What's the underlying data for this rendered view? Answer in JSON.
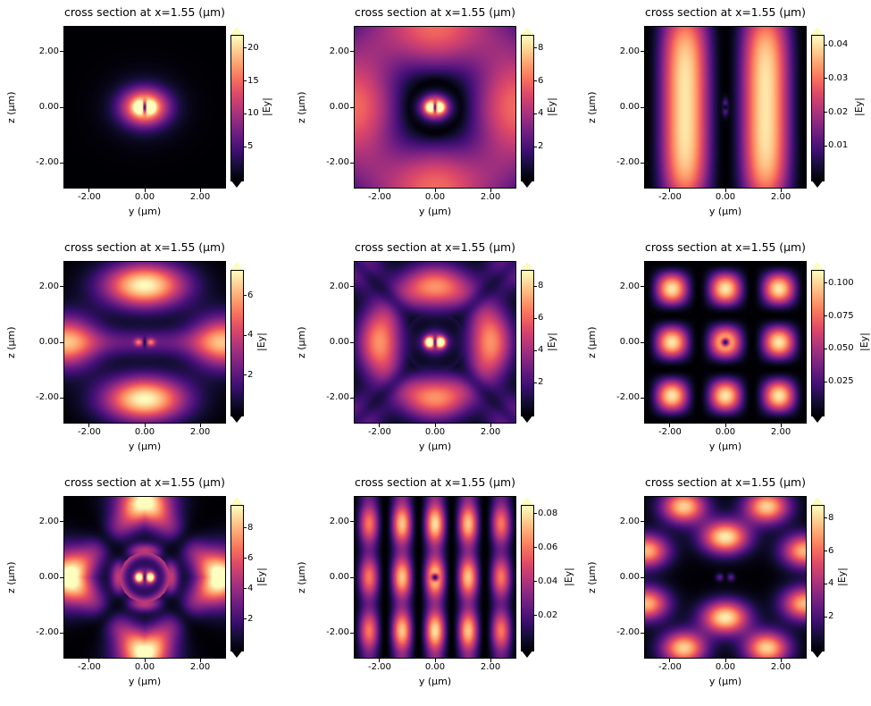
{
  "figure": {
    "background": "#ffffff",
    "colormap_name": "magma",
    "colormap_stops": [
      "#000004",
      "#140e36",
      "#3b0f70",
      "#641a80",
      "#8c2981",
      "#b73779",
      "#de4968",
      "#f7705c",
      "#fe9f6d",
      "#fece91",
      "#fcfdbf"
    ],
    "grid": {
      "rows": 3,
      "cols": 3
    }
  },
  "chart_data": [
    {
      "type": "heatmap",
      "title": "cross section at x=1.55 (µm)",
      "xlabel": "y (µm)",
      "ylabel": "z (µm)",
      "colorbar_label": "|Ey|",
      "extent": {
        "x": [
          -2.9,
          2.9
        ],
        "z": [
          -2.9,
          2.9
        ]
      },
      "xticks": {
        "values": [
          -2,
          0,
          2
        ],
        "labels": [
          "-2.00",
          "0.00",
          "2.00"
        ]
      },
      "yticks": {
        "values": [
          2,
          0,
          -2
        ],
        "labels": [
          "2.00",
          "0.00",
          "-2.00"
        ]
      },
      "vmin": 0,
      "vmax": 22,
      "colorbar_ticks": {
        "values": [
          5,
          10,
          15,
          20
        ],
        "labels": [
          "5",
          "10",
          "15",
          "20"
        ]
      },
      "colorbar_extend": "both",
      "field_model": {
        "components": [
          {
            "kind": "gauss",
            "amp": 20,
            "x": 0,
            "z": 0,
            "sx": 0.8,
            "sz": 0.62
          },
          {
            "kind": "gauss",
            "amp": 3,
            "x": 0,
            "z": 0,
            "sx": 1.35,
            "sz": 1.15
          },
          {
            "kind": "gauss",
            "amp": 10,
            "x": -0.22,
            "z": 0,
            "sx": 0.18,
            "sz": 0.2
          },
          {
            "kind": "gauss",
            "amp": 10,
            "x": 0.22,
            "z": 0,
            "sx": 0.18,
            "sz": 0.2
          }
        ],
        "masks": [
          {
            "kind": "slit",
            "depth": 0.85,
            "sx": 0.07,
            "sz": 0.22
          }
        ]
      }
    },
    {
      "type": "heatmap",
      "title": "cross section at x=1.55 (µm)",
      "xlabel": "y (µm)",
      "ylabel": "z (µm)",
      "colorbar_label": "|Ey|",
      "extent": {
        "x": [
          -2.9,
          2.9
        ],
        "z": [
          -2.9,
          2.9
        ]
      },
      "xticks": {
        "values": [
          -2,
          0,
          2
        ],
        "labels": [
          "-2.00",
          "0.00",
          "2.00"
        ]
      },
      "yticks": {
        "values": [
          2,
          0,
          -2
        ],
        "labels": [
          "2.00",
          "0.00",
          "-2.00"
        ]
      },
      "vmin": 0,
      "vmax": 8.8,
      "colorbar_ticks": {
        "values": [
          2,
          4,
          6,
          8
        ],
        "labels": [
          "2",
          "4",
          "6",
          "8"
        ]
      },
      "colorbar_extend": "both",
      "field_model": {
        "components": [
          {
            "kind": "gauss",
            "amp": 8.8,
            "x": 0,
            "z": 0,
            "sx": 0.5,
            "sz": 0.42
          },
          {
            "kind": "gauss",
            "amp": 4,
            "x": -0.2,
            "z": 0,
            "sx": 0.15,
            "sz": 0.17
          },
          {
            "kind": "gauss",
            "amp": 4,
            "x": 0.2,
            "z": 0,
            "sx": 0.15,
            "sz": 0.17
          },
          {
            "kind": "radialsin",
            "amp": 6,
            "r0": 0.95,
            "k": 0.8,
            "ang": 0.35
          }
        ],
        "masks": [
          {
            "kind": "slit",
            "depth": 0.8,
            "sx": 0.06,
            "sz": 0.2
          }
        ]
      }
    },
    {
      "type": "heatmap",
      "title": "cross section at x=1.55 (µm)",
      "xlabel": "y (µm)",
      "ylabel": "z (µm)",
      "colorbar_label": "|Ey|",
      "extent": {
        "x": [
          -2.9,
          2.9
        ],
        "z": [
          -2.9,
          2.9
        ]
      },
      "xticks": {
        "values": [
          -2,
          0,
          2
        ],
        "labels": [
          "-2.00",
          "0.00",
          "2.00"
        ]
      },
      "yticks": {
        "values": [
          2,
          0,
          -2
        ],
        "labels": [
          "2.00",
          "0.00",
          "-2.00"
        ]
      },
      "vmin": 0,
      "vmax": 0.043,
      "colorbar_ticks": {
        "values": [
          0.01,
          0.02,
          0.03,
          0.04
        ],
        "labels": [
          "0.01",
          "0.02",
          "0.03",
          "0.04"
        ]
      },
      "colorbar_extend": "both",
      "field_model": {
        "components": [
          {
            "kind": "vbands",
            "amp": 0.041,
            "k": 1.0833,
            "L": 2.9,
            "env": 0.3
          },
          {
            "kind": "gauss",
            "amp": 0.02,
            "x": 0,
            "z": 0,
            "sx": 0.1,
            "sz": 0.28
          }
        ],
        "masks": [
          {
            "kind": "darkdot",
            "depth": 0.9,
            "r": 0.13
          }
        ]
      }
    },
    {
      "type": "heatmap",
      "title": "cross section at x=1.55 (µm)",
      "xlabel": "y (µm)",
      "ylabel": "z (µm)",
      "colorbar_label": "|Ey|",
      "extent": {
        "x": [
          -2.9,
          2.9
        ],
        "z": [
          -2.9,
          2.9
        ]
      },
      "xticks": {
        "values": [
          -2,
          0,
          2
        ],
        "labels": [
          "-2.00",
          "0.00",
          "2.00"
        ]
      },
      "yticks": {
        "values": [
          2,
          0,
          -2
        ],
        "labels": [
          "2.00",
          "0.00",
          "-2.00"
        ]
      },
      "vmin": 0,
      "vmax": 7.3,
      "colorbar_ticks": {
        "values": [
          2,
          4,
          6
        ],
        "labels": [
          "2",
          "4",
          "6"
        ]
      },
      "colorbar_extend": "both",
      "field_model": {
        "components": [
          {
            "kind": "gauss",
            "amp": 7.3,
            "x": 0,
            "z": 2.05,
            "sx": 1.5,
            "sz": 0.8
          },
          {
            "kind": "gauss",
            "amp": 7.3,
            "x": 0,
            "z": -2.05,
            "sx": 1.5,
            "sz": 0.8
          },
          {
            "kind": "gauss",
            "amp": 5.8,
            "x": -2.85,
            "z": 0,
            "sx": 1.15,
            "sz": 0.95
          },
          {
            "kind": "gauss",
            "amp": 5.8,
            "x": 2.85,
            "z": 0,
            "sx": 1.15,
            "sz": 0.95
          },
          {
            "kind": "gauss",
            "amp": 2.2,
            "x": 0,
            "z": 0,
            "sx": 2.6,
            "sz": 0.5
          },
          {
            "kind": "gauss",
            "amp": 3.2,
            "x": -0.22,
            "z": 0,
            "sx": 0.15,
            "sz": 0.13
          },
          {
            "kind": "gauss",
            "amp": 3.2,
            "x": 0.22,
            "z": 0,
            "sx": 0.15,
            "sz": 0.13
          }
        ],
        "masks": [
          {
            "kind": "slit",
            "depth": 0.75,
            "sx": 0.06,
            "sz": 0.18
          }
        ]
      }
    },
    {
      "type": "heatmap",
      "title": "cross section at x=1.55 (µm)",
      "xlabel": "y (µm)",
      "ylabel": "z (µm)",
      "colorbar_label": "|Ey|",
      "extent": {
        "x": [
          -2.9,
          2.9
        ],
        "z": [
          -2.9,
          2.9
        ]
      },
      "xticks": {
        "values": [
          -2,
          0,
          2
        ],
        "labels": [
          "-2.00",
          "0.00",
          "2.00"
        ]
      },
      "yticks": {
        "values": [
          2,
          0,
          -2
        ],
        "labels": [
          "2.00",
          "0.00",
          "-2.00"
        ]
      },
      "vmin": 0,
      "vmax": 9,
      "colorbar_ticks": {
        "values": [
          2,
          4,
          6,
          8
        ],
        "labels": [
          "2",
          "4",
          "6",
          "8"
        ]
      },
      "colorbar_extend": "both",
      "field_model": {
        "components": [
          {
            "kind": "gauss",
            "amp": 9,
            "x": -0.21,
            "z": 0,
            "sx": 0.16,
            "sz": 0.18
          },
          {
            "kind": "gauss",
            "amp": 9,
            "x": 0.21,
            "z": 0,
            "sx": 0.16,
            "sz": 0.18
          },
          {
            "kind": "gauss",
            "amp": 5,
            "x": 0,
            "z": 0,
            "sx": 0.5,
            "sz": 0.42
          },
          {
            "kind": "ringang",
            "amp": 7,
            "r0": 2.0,
            "w": 0.8,
            "ang": 0.45
          },
          {
            "kind": "gauss",
            "amp": 3.5,
            "x": -2.7,
            "z": 2.7,
            "sx": 0.8,
            "sz": 0.8
          },
          {
            "kind": "gauss",
            "amp": 3.5,
            "x": 2.7,
            "z": 2.7,
            "sx": 0.8,
            "sz": 0.8
          },
          {
            "kind": "gauss",
            "amp": 3.5,
            "x": -2.7,
            "z": -2.7,
            "sx": 0.8,
            "sz": 0.8
          },
          {
            "kind": "gauss",
            "amp": 3.5,
            "x": 2.7,
            "z": -2.7,
            "sx": 0.8,
            "sz": 0.8
          }
        ],
        "masks": [
          {
            "kind": "slit",
            "depth": 0.75,
            "sx": 0.06,
            "sz": 0.2
          },
          {
            "kind": "darkdiag",
            "depth": 0.5,
            "w": 0.32,
            "rmin": 1.1
          }
        ]
      }
    },
    {
      "type": "heatmap",
      "title": "cross section at x=1.55 (µm)",
      "xlabel": "y (µm)",
      "ylabel": "z (µm)",
      "colorbar_label": "|Ey|",
      "extent": {
        "x": [
          -2.9,
          2.9
        ],
        "z": [
          -2.9,
          2.9
        ]
      },
      "xticks": {
        "values": [
          -2,
          0,
          2
        ],
        "labels": [
          "-2.00",
          "0.00",
          "2.00"
        ]
      },
      "yticks": {
        "values": [
          2,
          0,
          -2
        ],
        "labels": [
          "2.00",
          "0.00",
          "-2.00"
        ]
      },
      "vmin": 0,
      "vmax": 0.11,
      "colorbar_ticks": {
        "values": [
          0.025,
          0.05,
          0.075,
          0.1
        ],
        "labels": [
          "0.025",
          "0.050",
          "0.075",
          "0.100"
        ]
      },
      "colorbar_extend": "both",
      "field_model": {
        "components": [
          {
            "kind": "grid",
            "amp": 0.105,
            "kx": 1.628,
            "kz": 1.628
          }
        ],
        "masks": [
          {
            "kind": "darkdot",
            "depth": 0.85,
            "r": 0.14
          }
        ]
      }
    },
    {
      "type": "heatmap",
      "title": "cross section at x=1.55 (µm)",
      "xlabel": "y (µm)",
      "ylabel": "z (µm)",
      "colorbar_label": "|Ey|",
      "extent": {
        "x": [
          -2.9,
          2.9
        ],
        "z": [
          -2.9,
          2.9
        ]
      },
      "xticks": {
        "values": [
          -2,
          0,
          2
        ],
        "labels": [
          "-2.00",
          "0.00",
          "2.00"
        ]
      },
      "yticks": {
        "values": [
          2,
          0,
          -2
        ],
        "labels": [
          "2.00",
          "0.00",
          "-2.00"
        ]
      },
      "vmin": 0,
      "vmax": 9.5,
      "colorbar_ticks": {
        "values": [
          2,
          4,
          6,
          8
        ],
        "labels": [
          "2",
          "4",
          "6",
          "8"
        ]
      },
      "colorbar_extend": "both",
      "field_model": {
        "components": [
          {
            "kind": "gauss",
            "amp": 9.5,
            "x": -0.21,
            "z": 0,
            "sx": 0.15,
            "sz": 0.17
          },
          {
            "kind": "gauss",
            "amp": 9.5,
            "x": 0.21,
            "z": 0,
            "sx": 0.15,
            "sz": 0.17
          },
          {
            "kind": "gauss",
            "amp": 4,
            "x": 0,
            "z": 0,
            "sx": 0.5,
            "sz": 0.45
          },
          {
            "kind": "ringang",
            "amp": 5,
            "r0": 0.95,
            "w": 0.28,
            "ang": 0
          },
          {
            "kind": "gauss",
            "amp": 7.8,
            "x": -2.8,
            "z": 0,
            "sx": 0.85,
            "sz": 1.05
          },
          {
            "kind": "gauss",
            "amp": 7.8,
            "x": 2.8,
            "z": 0,
            "sx": 0.85,
            "sz": 1.05
          },
          {
            "kind": "gauss",
            "amp": 7.2,
            "x": 0,
            "z": 2.8,
            "sx": 1.05,
            "sz": 0.85
          },
          {
            "kind": "gauss",
            "amp": 7.2,
            "x": 0,
            "z": -2.8,
            "sx": 1.05,
            "sz": 0.85
          },
          {
            "kind": "diamond",
            "amp": 3.2,
            "d0": 2.7,
            "w": 0.75
          }
        ],
        "masks": [
          {
            "kind": "darkdiag",
            "depth": 0.75,
            "w": 0.38,
            "rmin": 0.9
          },
          {
            "kind": "slit",
            "depth": 0.7,
            "sx": 0.06,
            "sz": 0.2
          }
        ]
      }
    },
    {
      "type": "heatmap",
      "title": "cross section at x=1.55 (µm)",
      "xlabel": "y (µm)",
      "ylabel": "z (µm)",
      "colorbar_label": "|Ey|",
      "extent": {
        "x": [
          -2.9,
          2.9
        ],
        "z": [
          -2.9,
          2.9
        ]
      },
      "xticks": {
        "values": [
          -2,
          0,
          2
        ],
        "labels": [
          "-2.00",
          "0.00",
          "2.00"
        ]
      },
      "yticks": {
        "values": [
          2,
          0,
          -2
        ],
        "labels": [
          "2.00",
          "0.00",
          "-2.00"
        ]
      },
      "vmin": 0,
      "vmax": 0.085,
      "colorbar_ticks": {
        "values": [
          0.02,
          0.04,
          0.06,
          0.08
        ],
        "labels": [
          "0.02",
          "0.04",
          "0.06",
          "0.08"
        ]
      },
      "colorbar_extend": "both",
      "field_model": {
        "components": [
          {
            "kind": "vbeads",
            "amp": 0.08,
            "kx": 2.618,
            "kz": 1.628,
            "mix": 0.45,
            "edge": 0.35,
            "L": 2.9
          }
        ],
        "masks": [
          {
            "kind": "darkdot",
            "depth": 0.85,
            "r": 0.13
          }
        ]
      }
    },
    {
      "type": "heatmap",
      "title": "cross section at x=1.55 (µm)",
      "xlabel": "y (µm)",
      "ylabel": "z (µm)",
      "colorbar_label": "|Ey|",
      "extent": {
        "x": [
          -2.9,
          2.9
        ],
        "z": [
          -2.9,
          2.9
        ]
      },
      "xticks": {
        "values": [
          -2,
          0,
          2
        ],
        "labels": [
          "-2.00",
          "0.00",
          "2.00"
        ]
      },
      "yticks": {
        "values": [
          2,
          0,
          -2
        ],
        "labels": [
          "2.00",
          "0.00",
          "-2.00"
        ]
      },
      "vmin": 0,
      "vmax": 8.8,
      "colorbar_ticks": {
        "values": [
          2,
          4,
          6,
          8
        ],
        "labels": [
          "2",
          "4",
          "6",
          "8"
        ]
      },
      "colorbar_extend": "both",
      "field_model": {
        "components": [
          {
            "kind": "gauss",
            "amp": 8.5,
            "x": 0,
            "z": 1.45,
            "sx": 0.85,
            "sz": 0.6
          },
          {
            "kind": "gauss",
            "amp": 8.5,
            "x": 0,
            "z": -1.45,
            "sx": 0.85,
            "sz": 0.6
          },
          {
            "kind": "gauss",
            "amp": 8,
            "x": -1.5,
            "z": 2.55,
            "sx": 0.8,
            "sz": 0.6
          },
          {
            "kind": "gauss",
            "amp": 8,
            "x": 1.5,
            "z": 2.55,
            "sx": 0.8,
            "sz": 0.6
          },
          {
            "kind": "gauss",
            "amp": 8,
            "x": -1.5,
            "z": -2.55,
            "sx": 0.8,
            "sz": 0.6
          },
          {
            "kind": "gauss",
            "amp": 8,
            "x": 1.5,
            "z": -2.55,
            "sx": 0.8,
            "sz": 0.6
          },
          {
            "kind": "gauss",
            "amp": 7.5,
            "x": -2.85,
            "z": 0.95,
            "sx": 0.8,
            "sz": 0.6
          },
          {
            "kind": "gauss",
            "amp": 7.5,
            "x": 2.85,
            "z": 0.95,
            "sx": 0.8,
            "sz": 0.6
          },
          {
            "kind": "gauss",
            "amp": 7.5,
            "x": -2.85,
            "z": -0.95,
            "sx": 0.8,
            "sz": 0.6
          },
          {
            "kind": "gauss",
            "amp": 7.5,
            "x": 2.85,
            "z": -0.95,
            "sx": 0.8,
            "sz": 0.6
          },
          {
            "kind": "gauss",
            "amp": 2.5,
            "x": -0.2,
            "z": 0,
            "sx": 0.14,
            "sz": 0.14
          },
          {
            "kind": "gauss",
            "amp": 2.5,
            "x": 0.2,
            "z": 0,
            "sx": 0.14,
            "sz": 0.14
          }
        ],
        "masks": [
          {
            "kind": "slit",
            "depth": 0.7,
            "sx": 0.06,
            "sz": 0.16
          }
        ]
      }
    }
  ]
}
